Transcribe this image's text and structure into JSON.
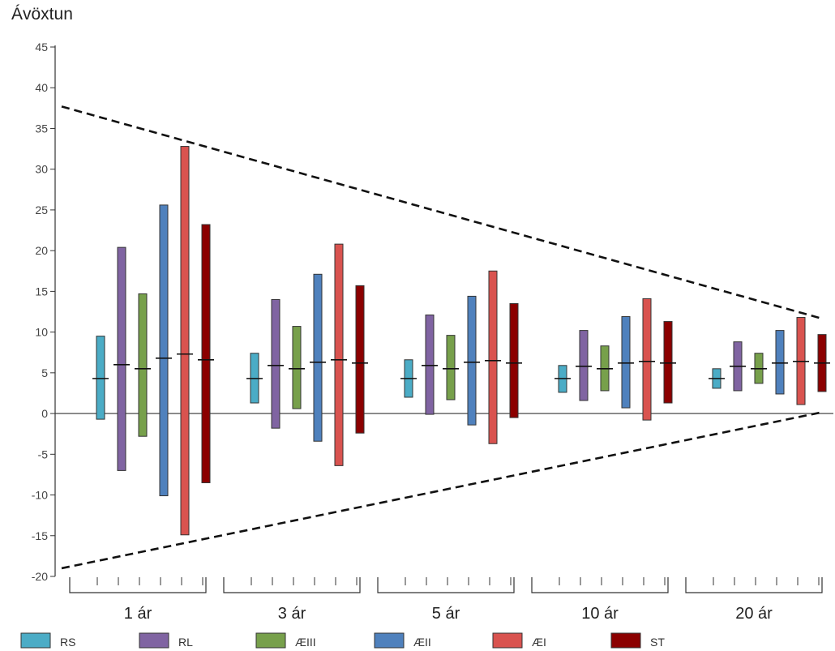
{
  "chart_data": {
    "type": "bar",
    "subtype": "floating-range",
    "ylabel": "Ávöxtun",
    "ylim": [
      -20,
      45
    ],
    "yticks": [
      -20,
      -15,
      -10,
      -5,
      0,
      5,
      10,
      15,
      20,
      25,
      30,
      35,
      40,
      45
    ],
    "grid": false,
    "legend_position": "bottom",
    "categories": [
      "1 ár",
      "3 ár",
      "5 ár",
      "10 ár",
      "20 ár"
    ],
    "series": [
      {
        "name": "RS",
        "color": "#4bacc6",
        "low": [
          -0.7,
          1.3,
          2.0,
          2.6,
          3.1
        ],
        "high": [
          9.5,
          7.4,
          6.6,
          5.9,
          5.5
        ],
        "mid": [
          4.3,
          4.3,
          4.3,
          4.3,
          4.3
        ]
      },
      {
        "name": "RL",
        "color": "#8064a2",
        "low": [
          -7.0,
          -1.8,
          -0.1,
          1.6,
          2.8
        ],
        "high": [
          20.4,
          14.0,
          12.1,
          10.2,
          8.8
        ],
        "mid": [
          6.0,
          5.9,
          5.9,
          5.8,
          5.8
        ]
      },
      {
        "name": "ÆIII",
        "color": "#77a04b",
        "low": [
          -2.8,
          0.6,
          1.7,
          2.8,
          3.7
        ],
        "high": [
          14.7,
          10.7,
          9.6,
          8.3,
          7.4
        ],
        "mid": [
          5.5,
          5.5,
          5.5,
          5.5,
          5.5
        ]
      },
      {
        "name": "ÆII",
        "color": "#4f81bd",
        "low": [
          -10.1,
          -3.4,
          -1.4,
          0.7,
          2.4
        ],
        "high": [
          25.6,
          17.1,
          14.4,
          11.9,
          10.2
        ],
        "mid": [
          6.8,
          6.3,
          6.3,
          6.2,
          6.2
        ]
      },
      {
        "name": "ÆI",
        "color": "#d9534f",
        "low": [
          -14.9,
          -6.4,
          -3.7,
          -0.8,
          1.1
        ],
        "high": [
          32.8,
          20.8,
          17.5,
          14.1,
          11.8
        ],
        "mid": [
          7.3,
          6.6,
          6.5,
          6.4,
          6.4
        ]
      },
      {
        "name": "ST",
        "color": "#8b0000",
        "low": [
          -8.5,
          -2.4,
          -0.5,
          1.3,
          2.7
        ],
        "high": [
          23.2,
          15.7,
          13.5,
          11.3,
          9.7
        ],
        "mid": [
          6.6,
          6.2,
          6.2,
          6.2,
          6.2
        ]
      }
    ],
    "funnel_lines": {
      "upper": {
        "from": [
          0,
          37.7
        ],
        "to": [
          5,
          11.6
        ],
        "style": "dashed"
      },
      "lower": {
        "from": [
          0,
          -19.0
        ],
        "to": [
          5,
          0.2
        ],
        "style": "dashed"
      }
    }
  }
}
